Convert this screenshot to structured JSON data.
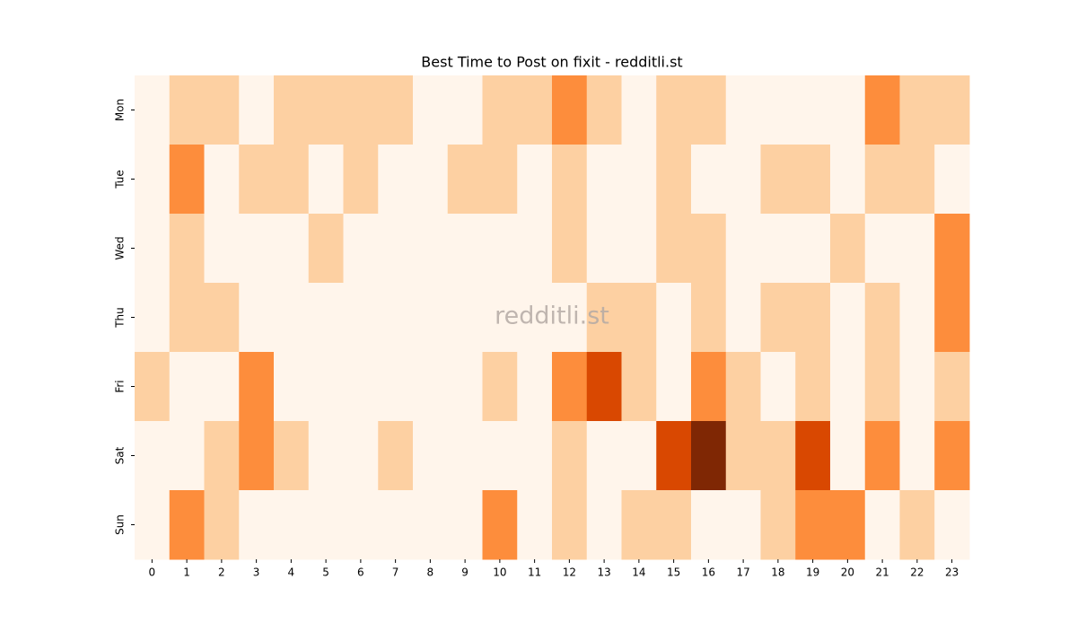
{
  "chart_data": {
    "type": "heatmap",
    "title": "Best Time to Post on fixit - redditli.st",
    "watermark": "redditli.st",
    "x": [
      "0",
      "1",
      "2",
      "3",
      "4",
      "5",
      "6",
      "7",
      "8",
      "9",
      "10",
      "11",
      "12",
      "13",
      "14",
      "15",
      "16",
      "17",
      "18",
      "19",
      "20",
      "21",
      "22",
      "23"
    ],
    "y": [
      "Mon",
      "Tue",
      "Wed",
      "Thu",
      "Fri",
      "Sat",
      "Sun"
    ],
    "values": [
      [
        0,
        1,
        1,
        0,
        1,
        1,
        1,
        1,
        0,
        0,
        1,
        1,
        2,
        1,
        0,
        1,
        1,
        0,
        0,
        0,
        0,
        2,
        1,
        1
      ],
      [
        0,
        2,
        0,
        1,
        1,
        0,
        1,
        0,
        0,
        1,
        1,
        0,
        1,
        0,
        0,
        1,
        0,
        0,
        1,
        1,
        0,
        1,
        1,
        0
      ],
      [
        0,
        1,
        0,
        0,
        0,
        1,
        0,
        0,
        0,
        0,
        0,
        0,
        1,
        0,
        0,
        1,
        1,
        0,
        0,
        0,
        1,
        0,
        0,
        2
      ],
      [
        0,
        1,
        1,
        0,
        0,
        0,
        0,
        0,
        0,
        0,
        0,
        0,
        0,
        1,
        1,
        0,
        1,
        0,
        1,
        1,
        0,
        1,
        0,
        2
      ],
      [
        1,
        0,
        0,
        2,
        0,
        0,
        0,
        0,
        0,
        0,
        1,
        0,
        2,
        3,
        1,
        0,
        2,
        1,
        0,
        1,
        0,
        1,
        0,
        1
      ],
      [
        0,
        0,
        1,
        2,
        1,
        0,
        0,
        1,
        0,
        0,
        0,
        0,
        1,
        0,
        0,
        3,
        4,
        1,
        1,
        3,
        0,
        2,
        0,
        2
      ],
      [
        0,
        2,
        1,
        0,
        0,
        0,
        0,
        0,
        0,
        0,
        2,
        0,
        1,
        0,
        1,
        1,
        0,
        0,
        1,
        2,
        2,
        0,
        1,
        0
      ]
    ],
    "colors": [
      "#fff5eb",
      "#fdd0a2",
      "#fd8d3c",
      "#d94801",
      "#7f2704"
    ],
    "vlim": [
      0,
      4
    ]
  }
}
